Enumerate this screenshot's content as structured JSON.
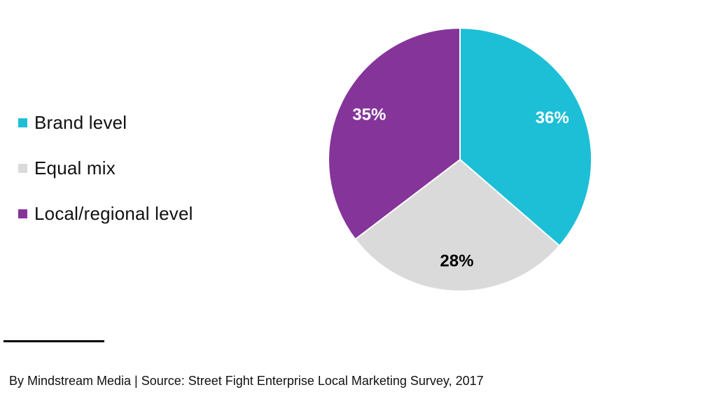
{
  "chart_data": {
    "type": "pie",
    "categories": [
      "Brand level",
      "Equal mix",
      "Local/regional level"
    ],
    "values": [
      36,
      28,
      35
    ],
    "data_labels": [
      "36%",
      "28%",
      "35%"
    ],
    "colors": [
      "#1dbfd6",
      "#dadada",
      "#85359a"
    ],
    "label_colors": [
      "#ffffff",
      "#000000",
      "#ffffff"
    ],
    "legend_position": "left",
    "start_angle_deg": 0,
    "direction": "clockwise"
  },
  "legend": {
    "items": [
      {
        "label": "Brand level",
        "color": "#1dbfd6"
      },
      {
        "label": "Equal mix",
        "color": "#dadada"
      },
      {
        "label": "Local/regional level",
        "color": "#85359a"
      }
    ]
  },
  "footer": {
    "source_text": "By Mindstream Media | Source: Street Fight Enterprise Local Marketing Survey, 2017"
  }
}
